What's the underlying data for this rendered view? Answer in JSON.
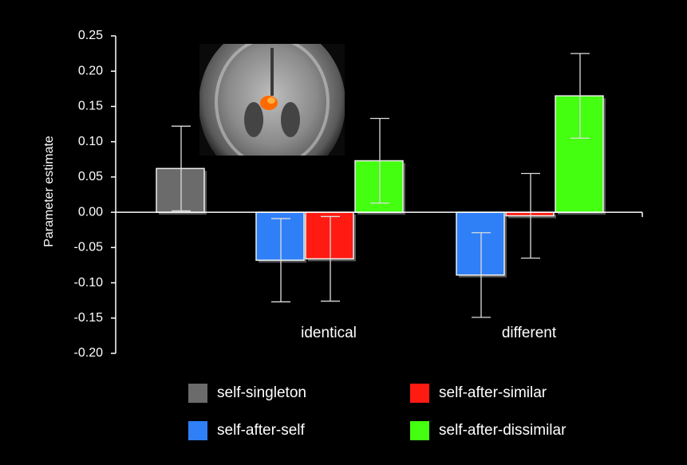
{
  "chart_data": {
    "type": "bar",
    "ylabel": "Parameter estimate",
    "categories": [
      null,
      "identical",
      "different"
    ],
    "series": [
      {
        "name": "self-singleton",
        "color": "#6b6b6b",
        "values": [
          0.062,
          null,
          null
        ],
        "errors": [
          0.06,
          null,
          null
        ]
      },
      {
        "name": "self-after-self",
        "color": "#2f80f7",
        "values": [
          null,
          -0.068,
          -0.089
        ],
        "errors": [
          null,
          0.059,
          0.06
        ]
      },
      {
        "name": "self-after-similar",
        "color": "#ff1a12",
        "values": [
          null,
          -0.066,
          -0.005
        ],
        "errors": [
          null,
          0.06,
          0.06
        ]
      },
      {
        "name": "self-after-dissimilar",
        "color": "#44ff10",
        "values": [
          null,
          0.073,
          0.165
        ],
        "errors": [
          null,
          0.06,
          0.06
        ]
      }
    ],
    "ylim": [
      -0.2,
      0.25
    ],
    "yticks": [
      0.25,
      {
        "value": 0.2,
        "label": "0.20"
      },
      0.15,
      {
        "value": 0.1,
        "label": "0.10"
      },
      0.05,
      {
        "value": 0,
        "label": "0.00"
      },
      -0.05,
      {
        "value": -0.1,
        "label": "-0.10"
      },
      -0.15,
      {
        "value": -0.2,
        "label": "-0.20"
      }
    ]
  }
}
